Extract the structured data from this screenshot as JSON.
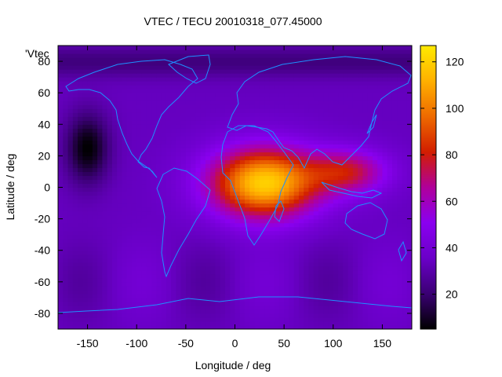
{
  "chart_data": {
    "type": "heatmap",
    "title": "VTEC / TECU 20010318_077.45000",
    "xlabel": "Longitude / deg",
    "ylabel": "Latitude / deg",
    "series_label": "'Vtec",
    "xlim": [
      -180,
      180
    ],
    "ylim": [
      -90,
      90
    ],
    "xticks": [
      -150,
      -100,
      -50,
      0,
      50,
      100,
      150
    ],
    "yticks": [
      -80,
      -60,
      -40,
      -20,
      0,
      20,
      40,
      60,
      80
    ],
    "colorbar": {
      "range": [
        5,
        127
      ],
      "ticks": [
        20,
        40,
        60,
        80,
        100,
        120
      ],
      "palette": [
        "#000000",
        "#3a0073",
        "#6a00c8",
        "#8a00f0",
        "#b0009a",
        "#d21e00",
        "#ee6a00",
        "#ffb000",
        "#ffea00"
      ]
    },
    "approx_field_tecu": {
      "background_tecu": 34,
      "high_region": {
        "center_lon": 30,
        "center_lat": 3,
        "peak_tecu": 120,
        "extent_lon": [
          -55,
          150
        ],
        "extent_lat": [
          -45,
          30
        ]
      },
      "low_region": {
        "center_lon": -150,
        "center_lat": 25,
        "min_tecu": 5
      }
    },
    "grid": false,
    "overlay": "continent coastlines"
  }
}
